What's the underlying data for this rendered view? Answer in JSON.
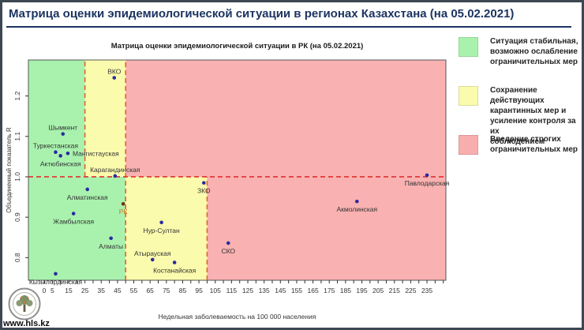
{
  "slide": {
    "title": "Матрица оценки эпидемиологической ситуации в регионах Казахстана (на 05.02.2021)",
    "watermark": "www.hls.kz",
    "accent_color": "#1c3461"
  },
  "legend": {
    "items": [
      {
        "color": "#a9f2ae",
        "meaning": "stable-zone",
        "text": "Ситуация стабильная,\nвозможно ослабление\nограничительных мер"
      },
      {
        "color": "#fbfbad",
        "meaning": "keep-measures-zone",
        "text": "Сохранение действующих\nкарантинных мер и\nусиление контроля за их\nсоблюдением"
      },
      {
        "color": "#f9aeae",
        "meaning": "strict-measures-zone",
        "text": "Введение строгих\nограничительных мер"
      }
    ]
  },
  "chart_data": {
    "type": "scatter",
    "title": "Матрица оценки эпидемиологической ситуации в РК (на 05.02.2021)",
    "xlabel": "Недельная заболеваемость на 100 000 населения",
    "ylabel": "Объединенный показатель R",
    "xlim": [
      -9.7,
      246.6
    ],
    "ylim": [
      0.744,
      1.289
    ],
    "grid": false,
    "point_color": "#2a2aa0",
    "label_color": "#333333",
    "x_ticks": {
      "step": 5,
      "min": 0,
      "max": 245,
      "labels": [
        0,
        5,
        15,
        25,
        35,
        45,
        55,
        65,
        75,
        85,
        95,
        105,
        115,
        125,
        135,
        145,
        155,
        165,
        175,
        185,
        195,
        205,
        215,
        225,
        235
      ]
    },
    "y_ticks": {
      "values": [
        0.8,
        0.9,
        1.0,
        1.1,
        1.2
      ],
      "labels": [
        "0.8",
        "0.9",
        "1.0",
        "1.1",
        "1.2"
      ]
    },
    "zones": [
      {
        "x1": -9.7,
        "x2": 25,
        "y1": 1.0,
        "y2": 1.289,
        "color": "#a9f2ae"
      },
      {
        "x1": 25,
        "x2": 50,
        "y1": 1.0,
        "y2": 1.289,
        "color": "#fbfbad"
      },
      {
        "x1": 50,
        "x2": 246.6,
        "y1": 1.0,
        "y2": 1.289,
        "color": "#f9b1b1"
      },
      {
        "x1": -9.7,
        "x2": 50,
        "y1": 0.744,
        "y2": 1.0,
        "color": "#a9f2ae"
      },
      {
        "x1": 50,
        "x2": 100,
        "y1": 0.744,
        "y2": 1.0,
        "color": "#fbfbad"
      },
      {
        "x1": 100,
        "x2": 246.6,
        "y1": 0.744,
        "y2": 1.0,
        "color": "#f9b1b1"
      }
    ],
    "threshold_lines": [
      {
        "orient": "v",
        "at": 25,
        "from": 1.0,
        "to": 1.289,
        "color": "#e0622f"
      },
      {
        "orient": "v",
        "at": 50,
        "from": 0.744,
        "to": 1.289,
        "color": "#e0622f"
      },
      {
        "orient": "v",
        "at": 100,
        "from": 0.744,
        "to": 1.0,
        "color": "#e0622f"
      },
      {
        "orient": "h",
        "at": 1.0,
        "from": -9.7,
        "to": 246.6,
        "color": "#e03131"
      }
    ],
    "points": [
      {
        "name": "ВКО",
        "x": 43,
        "y": 1.245,
        "label": "above"
      },
      {
        "name": "Шымкент",
        "x": 11.5,
        "y": 1.106,
        "label": "above"
      },
      {
        "name": "Туркестанская",
        "x": 7,
        "y": 1.061,
        "label": "above"
      },
      {
        "name": "Актюбинская",
        "x": 10,
        "y": 1.052,
        "label": "below"
      },
      {
        "name": "Мангистауская",
        "x": 14.5,
        "y": 1.058,
        "label": "right"
      },
      {
        "name": "Карагандинская",
        "x": 43.5,
        "y": 1.002,
        "label": "above"
      },
      {
        "name": "Алматинская",
        "x": 26.5,
        "y": 0.969,
        "label": "below"
      },
      {
        "name": "РК",
        "x": 48.5,
        "y": 0.933,
        "label": "below",
        "point_color": "#7b2e0e",
        "label_color": "#d2741c"
      },
      {
        "name": "Жамбылская",
        "x": 18,
        "y": 0.909,
        "label": "below"
      },
      {
        "name": "Нур-Султан",
        "x": 72,
        "y": 0.887,
        "label": "below"
      },
      {
        "name": "Алматы",
        "x": 41,
        "y": 0.848,
        "label": "below"
      },
      {
        "name": "Атырауская",
        "x": 66.5,
        "y": 0.795,
        "label": "above"
      },
      {
        "name": "Костанайская",
        "x": 80,
        "y": 0.788,
        "label": "below"
      },
      {
        "name": "Кызылординская",
        "x": 7,
        "y": 0.76,
        "label": "below"
      },
      {
        "name": "ЗКО",
        "x": 98,
        "y": 0.985,
        "label": "below"
      },
      {
        "name": "СКО",
        "x": 113,
        "y": 0.836,
        "label": "below"
      },
      {
        "name": "Акмолинская",
        "x": 192,
        "y": 0.939,
        "label": "below"
      },
      {
        "name": "Павлодарская",
        "x": 235,
        "y": 1.004,
        "label": "below"
      }
    ]
  }
}
